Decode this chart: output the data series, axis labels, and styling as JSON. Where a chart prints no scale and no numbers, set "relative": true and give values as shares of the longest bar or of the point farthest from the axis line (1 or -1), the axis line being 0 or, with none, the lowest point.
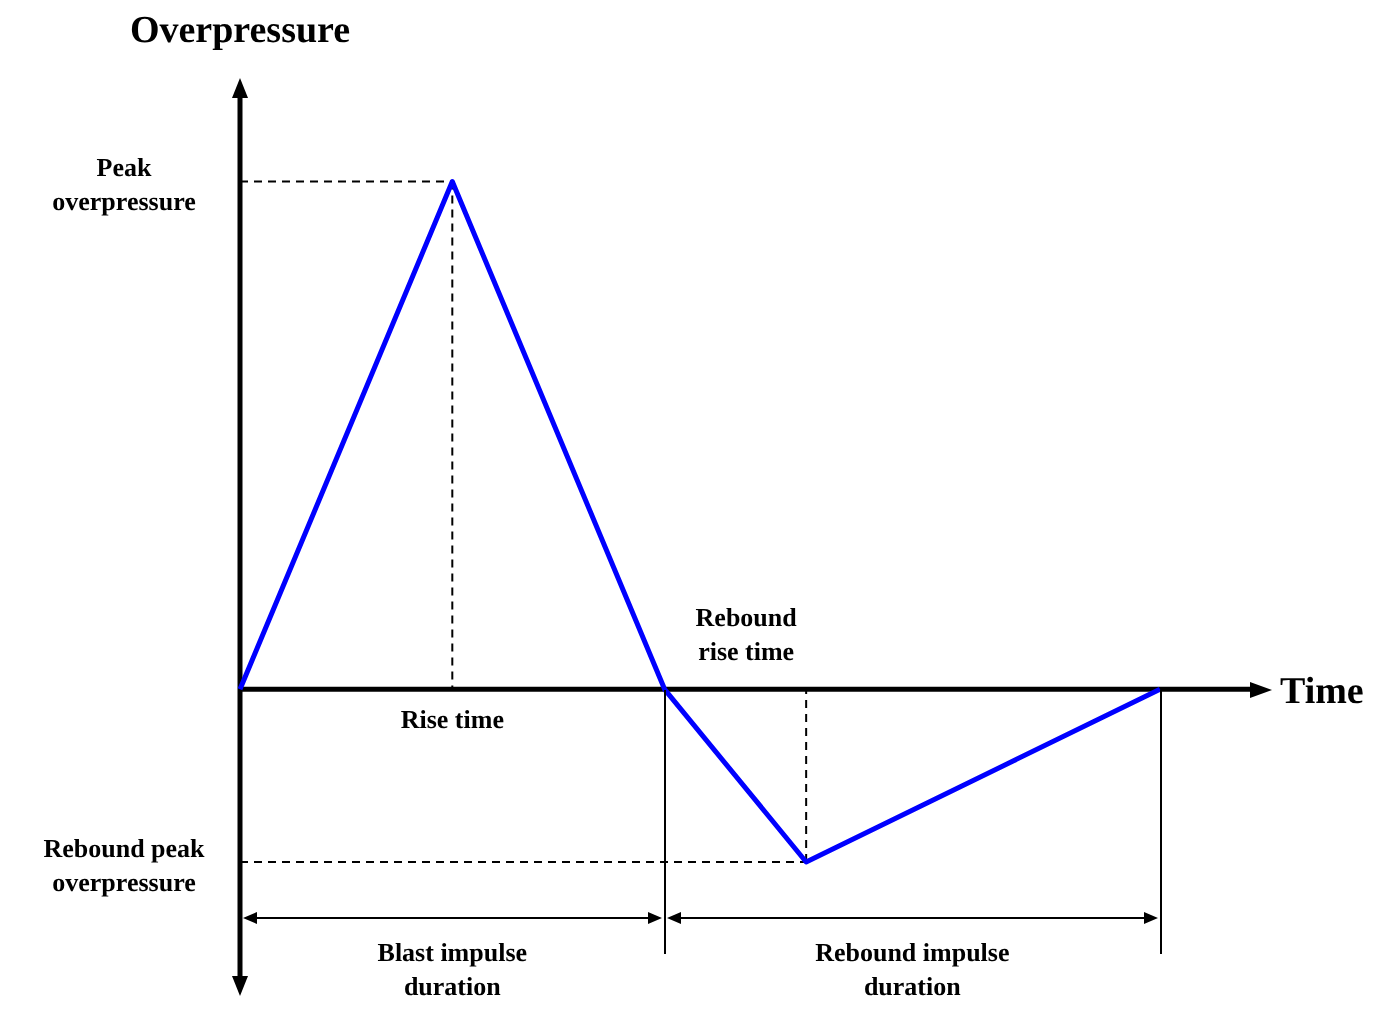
{
  "chart_data": {
    "type": "line",
    "relative": true,
    "xlabel": "Time",
    "ylabel": "Overpressure",
    "categories": [
      null,
      null,
      null,
      null,
      null,
      null,
      null,
      null,
      null,
      null,
      null,
      null,
      null,
      null
    ],
    "series": [
      {
        "color": "#0000ff",
        "values": [
          0,
          null,
          null,
          1,
          null,
          null,
          0,
          null,
          -0.34,
          null,
          null,
          null,
          null,
          0
        ]
      }
    ],
    "annotations": [
      "Peak overpressure",
      "Rebound peak overpressure",
      "Rise time",
      "Rebound rise time",
      "Blast impulse duration",
      "Rebound impulse duration"
    ],
    "legend": false,
    "tick_labels": false
  }
}
